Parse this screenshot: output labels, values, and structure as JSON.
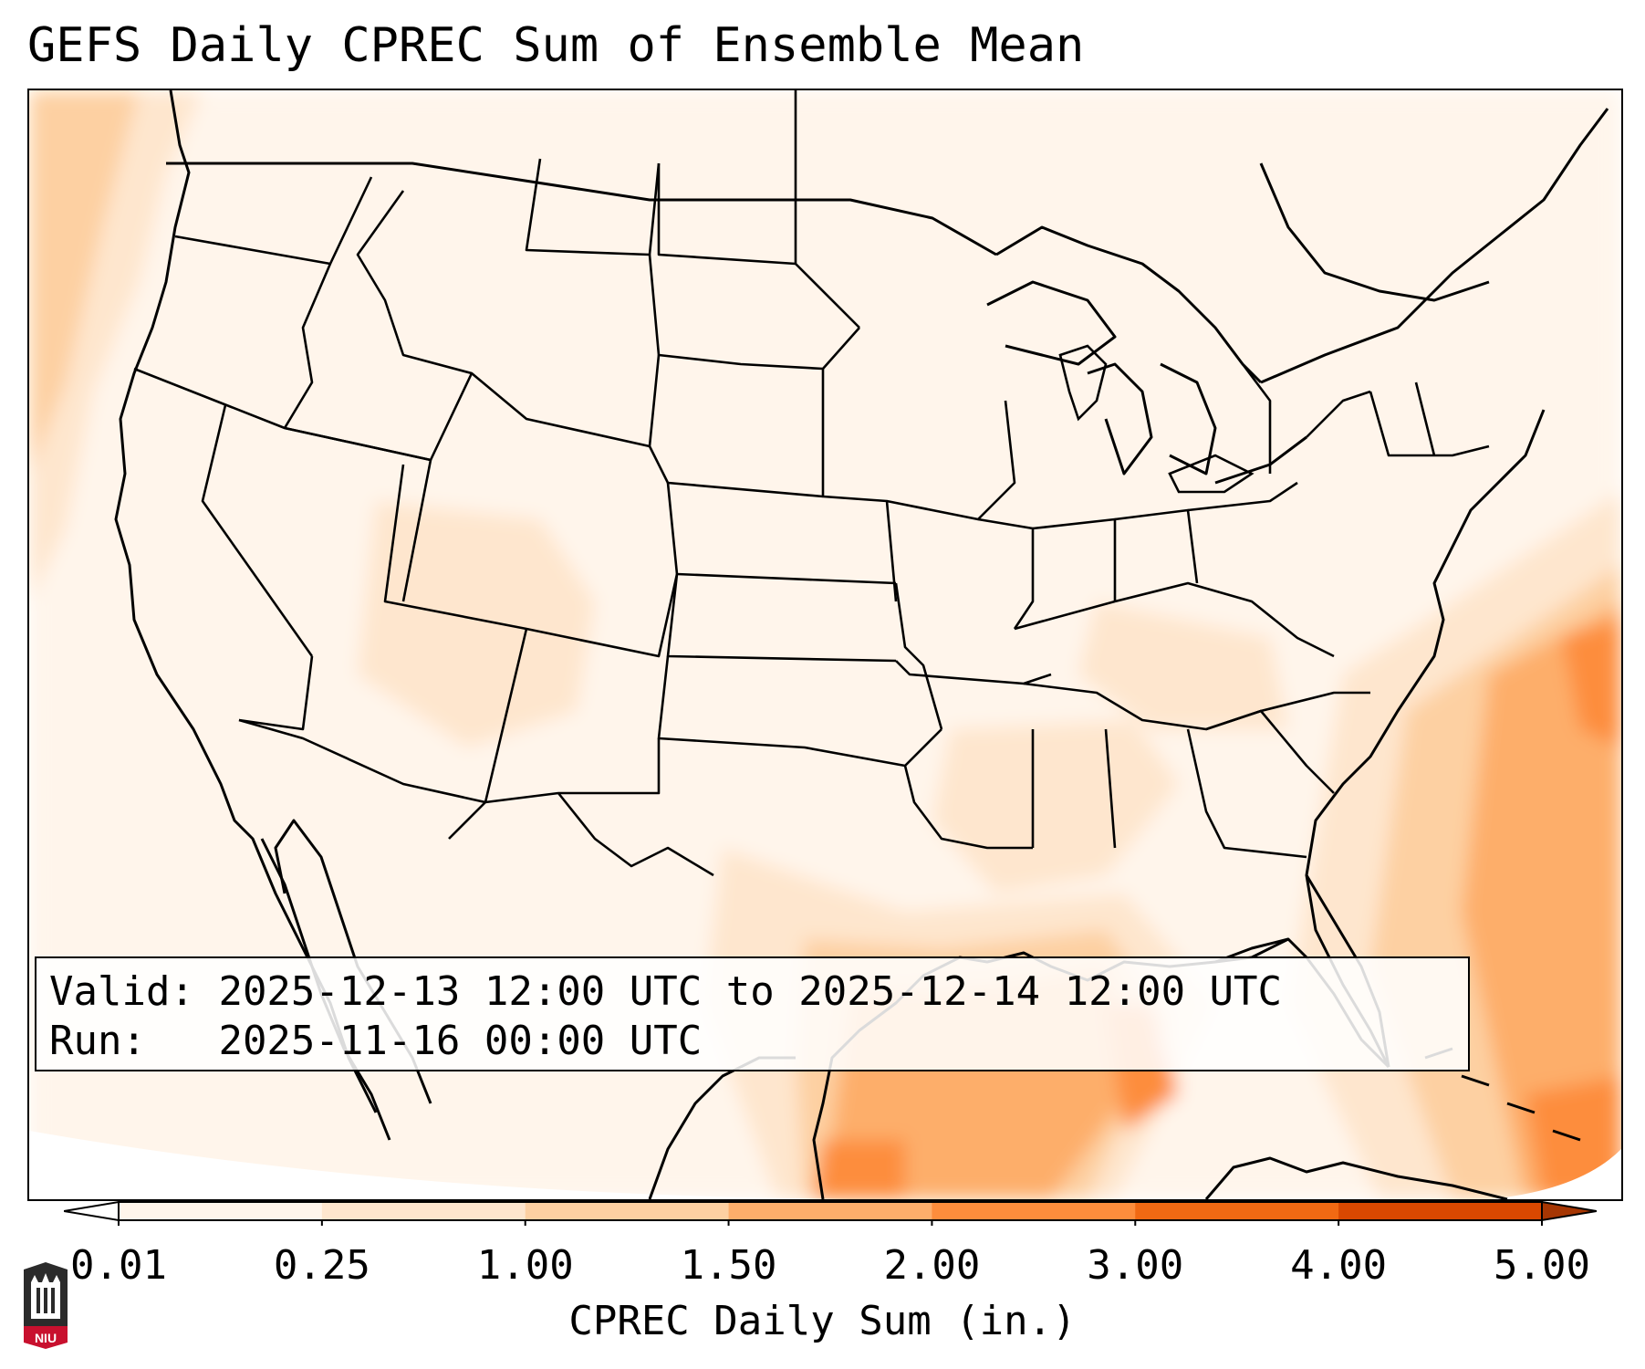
{
  "title": "GEFS Daily CPREC Sum of Ensemble Mean",
  "info": {
    "valid_label": "Valid:",
    "valid_value": "2025-12-13 12:00 UTC to 2025-12-14 12:00 UTC",
    "run_label": "Run:",
    "run_value": "2025-11-16 00:00 UTC"
  },
  "colorbar": {
    "label": "CPREC Daily Sum (in.)",
    "ticks": [
      "0.01",
      "0.25",
      "1.00",
      "1.50",
      "2.00",
      "3.00",
      "4.00",
      "5.00"
    ],
    "colors": [
      "#fff5eb",
      "#fee6ce",
      "#fdd0a2",
      "#fdae6b",
      "#fd8d3c",
      "#f16913",
      "#d94801"
    ],
    "under_color": "#ffffff",
    "over_color": "#a63603"
  },
  "logo": {
    "text": "NIU",
    "color": "#c8102e"
  },
  "map": {
    "projection": "lambert-conformal",
    "region": "CONUS",
    "field": "CPREC daily sum, ensemble mean"
  }
}
